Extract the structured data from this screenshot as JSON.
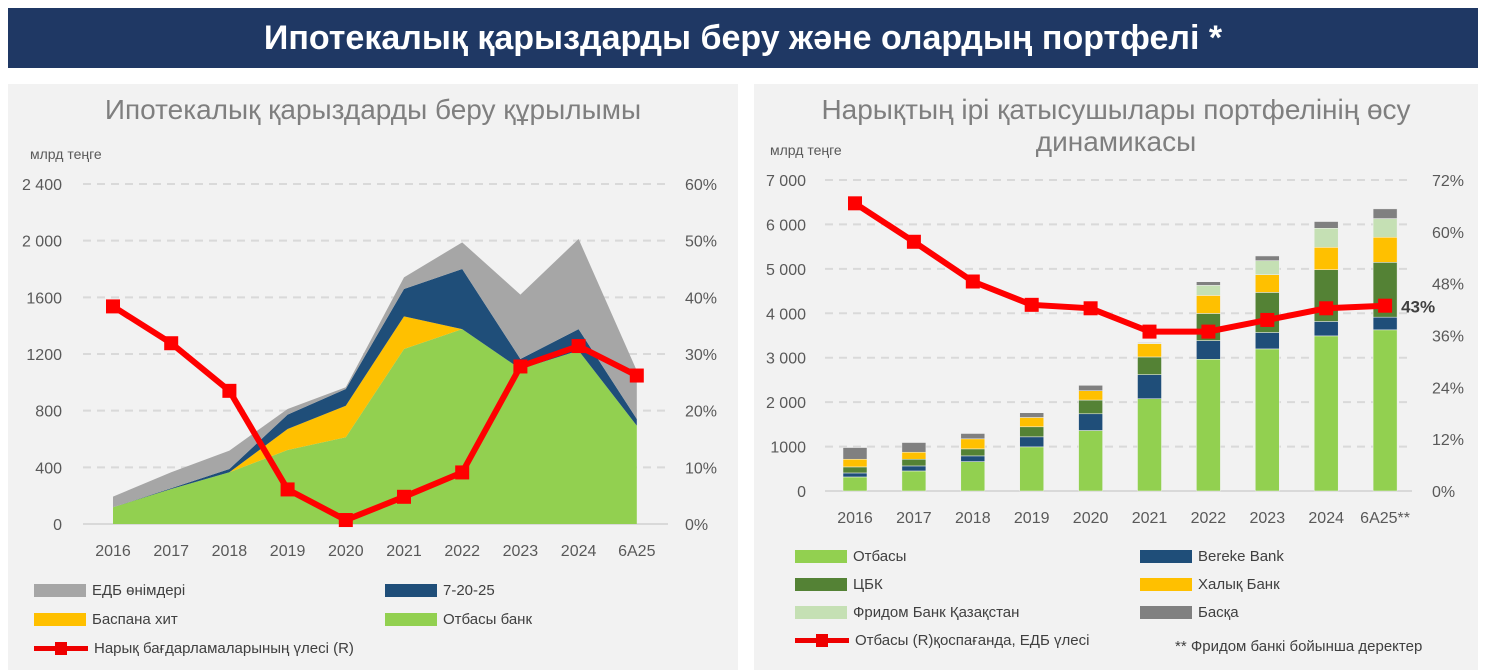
{
  "banner": {
    "title": "Ипотекалық қарыздарды беру және олардың портфелі *"
  },
  "chart_data": [
    {
      "type": "area",
      "title": "Ипотекалық қарыздарды беру құрылымы",
      "ylabel": "млрд теңге",
      "categories": [
        "2016",
        "2017",
        "2018",
        "2019",
        "2020",
        "2021",
        "2022",
        "2023",
        "2024",
        "6А25"
      ],
      "ylim": [
        0,
        2400
      ],
      "yticks": [
        "0",
        "400",
        "800",
        "1200",
        "1600",
        "2 000",
        "2 400"
      ],
      "y2lim": [
        0,
        60
      ],
      "y2ticks": [
        "0%",
        "10%",
        "20%",
        "30%",
        "40%",
        "50%",
        "60%"
      ],
      "grid": true,
      "legend": "bottom",
      "stacked": true,
      "series": [
        {
          "name": "Отбасы банк",
          "color": "#92d050",
          "values": [
            118,
            247,
            365,
            522,
            612,
            1235,
            1376,
            1094,
            1224,
            694
          ]
        },
        {
          "name": "Баспана хит",
          "color": "#ffc000",
          "values": [
            0,
            0,
            0,
            149,
            223,
            231,
            0,
            0,
            0,
            0
          ]
        },
        {
          "name": "7-20-25",
          "color": "#1f4e79",
          "values": [
            0,
            5,
            23,
            101,
            118,
            193,
            424,
            71,
            152,
            47
          ]
        },
        {
          "name": "ЕДБ өнімдері",
          "color": "#a6a6a6",
          "values": [
            75,
            113,
            130,
            40,
            12,
            82,
            188,
            454,
            636,
            341
          ]
        }
      ],
      "line": {
        "name": "Нарық бағдарламаларының үлесі (R)",
        "color": "#ff0000",
        "axis": "right",
        "values": [
          38.4,
          31.9,
          23.5,
          6.1,
          0.7,
          4.8,
          9.1,
          27.8,
          31.4,
          26.2
        ]
      }
    },
    {
      "type": "bar",
      "title": "Нарықтың ірі қатысушылары портфелінің өсу динамикасы",
      "ylabel": "млрд теңге",
      "categories": [
        "2016",
        "2017",
        "2018",
        "2019",
        "2020",
        "2021",
        "2022",
        "2023",
        "2024",
        "6А25**"
      ],
      "ylim": [
        0,
        7000
      ],
      "yticks": [
        "0",
        "1000",
        "2 000",
        "3 000",
        "4 000",
        "5 000",
        "6 000",
        "7 000"
      ],
      "y2lim": [
        0,
        72
      ],
      "y2ticks": [
        "0%",
        "12%",
        "24%",
        "36%",
        "48%",
        "60%",
        "72%"
      ],
      "grid": true,
      "legend": "bottom",
      "stacked": true,
      "series": [
        {
          "name": "Отбасы",
          "color": "#92d050",
          "values": [
            316,
            451,
            662,
            993,
            1362,
            2077,
            2965,
            3198,
            3491,
            3627
          ]
        },
        {
          "name": "Bereke Bank",
          "color": "#1f4e79",
          "values": [
            90,
            113,
            128,
            226,
            376,
            542,
            421,
            369,
            324,
            286
          ]
        },
        {
          "name": "ЦБК",
          "color": "#548235",
          "values": [
            136,
            151,
            158,
            226,
            309,
            398,
            610,
            903,
            1166,
            1234
          ]
        },
        {
          "name": "Халық Банк",
          "color": "#ffc000",
          "values": [
            173,
            158,
            226,
            210,
            210,
            301,
            406,
            399,
            504,
            564
          ]
        },
        {
          "name": "Фридом Банк Қазақстан",
          "color": "#c5e0b4",
          "values": [
            0,
            0,
            0,
            0,
            0,
            15,
            226,
            316,
            429,
            421
          ]
        },
        {
          "name": "Басқа",
          "color": "#808080",
          "values": [
            263,
            218,
            120,
            106,
            121,
            15,
            82,
            105,
            151,
            218
          ]
        }
      ],
      "line": {
        "name": "Отбасы (R)қоспағанда, ЕДБ үлесі",
        "color": "#ff0000",
        "axis": "right",
        "values": [
          66.6,
          57.7,
          48.5,
          43.1,
          42.3,
          36.9,
          36.9,
          39.6,
          42.3,
          42.9
        ]
      },
      "annotation": "43%",
      "footnote": "** Фридом банкі бойынша деректер"
    }
  ]
}
